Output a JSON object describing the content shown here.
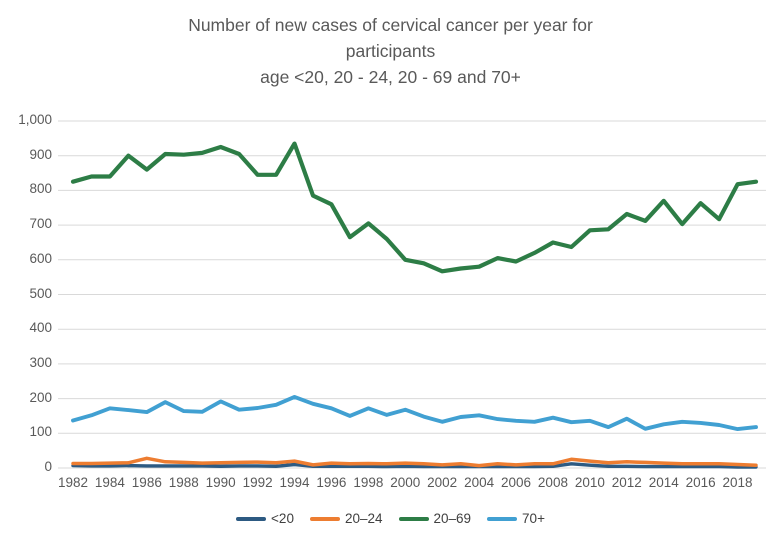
{
  "chart_data": {
    "type": "line",
    "title_lines": [
      "Number of new cases of cervical cancer per year for",
      "participants",
      "age <20, 20 - 24, 20 - 69 and 70+"
    ],
    "x": [
      1982,
      1983,
      1984,
      1985,
      1986,
      1987,
      1988,
      1989,
      1990,
      1991,
      1992,
      1993,
      1994,
      1995,
      1996,
      1997,
      1998,
      1999,
      2000,
      2001,
      2002,
      2003,
      2004,
      2005,
      2006,
      2007,
      2008,
      2009,
      2010,
      2011,
      2012,
      2013,
      2014,
      2015,
      2016,
      2017,
      2018,
      2019
    ],
    "series": [
      {
        "name": "<20",
        "color": "#2D5A82",
        "values": [
          7,
          6,
          6,
          7,
          6,
          6,
          6,
          6,
          5,
          6,
          6,
          5,
          10,
          5,
          5,
          5,
          5,
          4,
          5,
          4,
          4,
          4,
          4,
          4,
          4,
          4,
          5,
          12,
          8,
          5,
          5,
          4,
          4,
          4,
          4,
          4,
          3,
          3
        ]
      },
      {
        "name": "20–24",
        "color": "#ED7D31",
        "values": [
          13,
          13,
          14,
          15,
          28,
          18,
          16,
          14,
          15,
          16,
          17,
          15,
          20,
          9,
          14,
          12,
          13,
          12,
          14,
          12,
          9,
          12,
          7,
          12,
          9,
          12,
          12,
          25,
          20,
          15,
          18,
          16,
          14,
          12,
          12,
          12,
          10,
          8
        ]
      },
      {
        "name": "20–69",
        "color": "#2D7D46",
        "values": [
          825,
          840,
          840,
          900,
          860,
          905,
          903,
          908,
          925,
          905,
          845,
          845,
          935,
          785,
          760,
          665,
          705,
          660,
          600,
          590,
          567,
          575,
          580,
          605,
          595,
          620,
          650,
          637,
          685,
          688,
          732,
          712,
          770,
          703,
          763,
          717,
          818,
          825
        ]
      },
      {
        "name": "70+",
        "color": "#41A0D2",
        "values": [
          137,
          152,
          172,
          167,
          161,
          190,
          164,
          162,
          192,
          168,
          173,
          182,
          205,
          185,
          172,
          150,
          172,
          153,
          168,
          148,
          133,
          147,
          152,
          141,
          136,
          133,
          145,
          132,
          136,
          118,
          142,
          113,
          126,
          133,
          130,
          124,
          112,
          118
        ]
      }
    ],
    "ylim": [
      0,
      1000
    ],
    "ytick_step": 100,
    "ytick_labels": [
      "1,000",
      "900",
      "800",
      "700",
      "600",
      "500",
      "400",
      "300",
      "200",
      "100",
      "0"
    ],
    "xtick_labels": [
      "1982",
      "1984",
      "1986",
      "1988",
      "1990",
      "1992",
      "1994",
      "1996",
      "1998",
      "2000",
      "2002",
      "2004",
      "2006",
      "2008",
      "2010",
      "2012",
      "2014",
      "2016",
      "2018"
    ],
    "grid": true,
    "legend_position": "bottom",
    "colors": {
      "title": "#595959",
      "tick_label": "#595959",
      "gridline": "#D9D9D9",
      "background": "#FFFFFF"
    }
  }
}
